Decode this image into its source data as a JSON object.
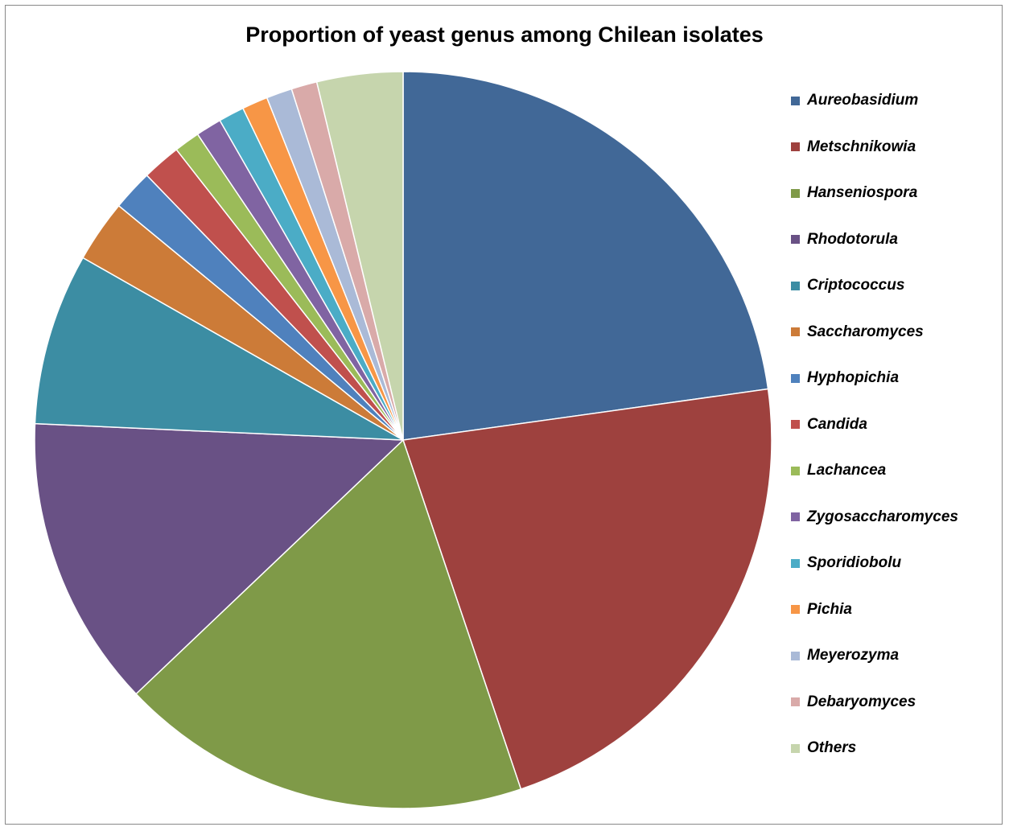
{
  "chart_data": {
    "type": "pie",
    "title": "Proportion of yeast genus among Chilean isolates",
    "legend_position": "right",
    "slices": [
      {
        "label": "Aureobasidium",
        "value": 24.2,
        "color": "#416897"
      },
      {
        "label": "Metschnikowia",
        "value": 23.4,
        "color": "#9e413e"
      },
      {
        "label": "Hanseniospora",
        "value": 19.2,
        "color": "#7f9a48"
      },
      {
        "label": "Rhodotorula",
        "value": 13.6,
        "color": "#695185"
      },
      {
        "label": "Criptococcus",
        "value": 8.0,
        "color": "#3c8da3"
      },
      {
        "label": "Saccharomyces",
        "value": 2.9,
        "color": "#cc7b38"
      },
      {
        "label": "Hyphopichia",
        "value": 1.9,
        "color": "#4f81bd"
      },
      {
        "label": "Candida",
        "value": 1.8,
        "color": "#c0504d"
      },
      {
        "label": "Lachancea",
        "value": 1.2,
        "color": "#9bbb59"
      },
      {
        "label": "Zygosaccharomyces",
        "value": 1.2,
        "color": "#8064a2"
      },
      {
        "label": "Sporidiobolu",
        "value": 1.2,
        "color": "#4bacc6"
      },
      {
        "label": "Pichia",
        "value": 1.2,
        "color": "#f79646"
      },
      {
        "label": "Meyerozyma",
        "value": 1.2,
        "color": "#aabad7"
      },
      {
        "label": "Debaryomyces",
        "value": 1.2,
        "color": "#d9aaa9"
      },
      {
        "label": "Others",
        "value": 4.0,
        "color": "#c6d5ad"
      }
    ]
  }
}
